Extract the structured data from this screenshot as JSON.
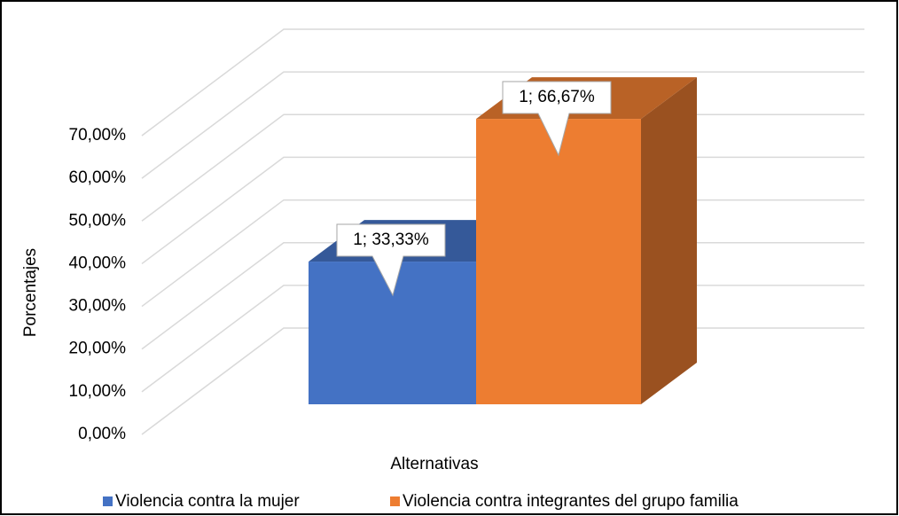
{
  "chart_data": {
    "type": "bar3d",
    "y_label": "Porcentajes",
    "x_label": "Alternativas",
    "ylim": [
      0,
      70
    ],
    "yticks": [
      {
        "value": 0,
        "label": "0,00%"
      },
      {
        "value": 10,
        "label": "10,00%"
      },
      {
        "value": 20,
        "label": "20,00%"
      },
      {
        "value": 30,
        "label": "30,00%"
      },
      {
        "value": 40,
        "label": "40,00%"
      },
      {
        "value": 50,
        "label": "50,00%"
      },
      {
        "value": 60,
        "label": "60,00%"
      },
      {
        "value": 70,
        "label": "70,00%"
      }
    ],
    "grid": true,
    "legend": "bottom",
    "series": [
      {
        "name": "Violencia contra la mujer",
        "color": "#4472c4",
        "values": [
          33.33
        ],
        "value_labels": [
          "1; 33,33%"
        ]
      },
      {
        "name": "Violencia contra integrantes del grupo familia",
        "color": "#ed7d31",
        "values": [
          66.67
        ],
        "value_labels": [
          "1; 66,67%"
        ]
      }
    ]
  }
}
